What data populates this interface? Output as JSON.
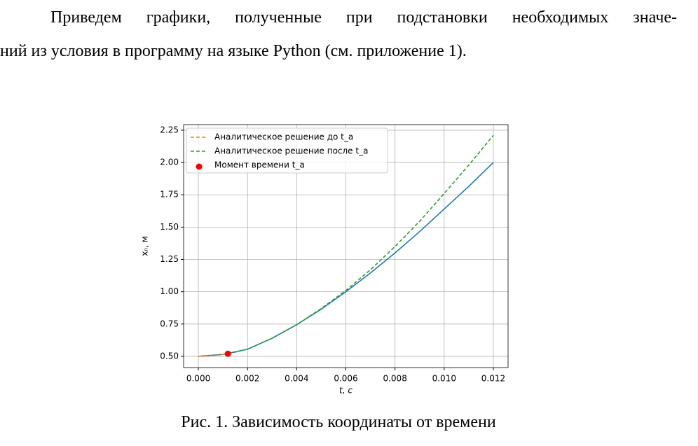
{
  "paragraph": {
    "lines": [
      "Приведем графики, полученные при подстановки необходимых значе-",
      "ний из условия в программу на языке Python (см. приложение 1)."
    ]
  },
  "chart_data": {
    "type": "line",
    "xlabel": "t, c",
    "ylabel": "xₙ, м",
    "xlim": [
      -0.0006,
      0.0126
    ],
    "ylim": [
      0.413,
      2.293
    ],
    "xticks": [
      {
        "value": 0,
        "label": "0.000"
      },
      {
        "value": 0.002,
        "label": "0.002"
      },
      {
        "value": 0.004,
        "label": "0.004"
      },
      {
        "value": 0.006,
        "label": "0.006"
      },
      {
        "value": 0.008,
        "label": "0.008"
      },
      {
        "value": 0.01,
        "label": "0.010"
      },
      {
        "value": 0.012,
        "label": "0.012"
      }
    ],
    "yticks": [
      {
        "value": 0.5,
        "label": "0.50"
      },
      0.75,
      {
        "value": 1,
        "label": "1.00"
      },
      1.25,
      {
        "value": 1.5,
        "label": "1.50"
      },
      1.75,
      {
        "value": 2,
        "label": "2.00"
      },
      2.25
    ],
    "grid": true,
    "legend": "upper-left",
    "series": [
      {
        "color": "#1f77b4",
        "style": "solid",
        "x": [
          0,
          0.001,
          0.002,
          0.003,
          0.004,
          0.005,
          0.006,
          0.007,
          0.008,
          0.009,
          0.01,
          0.011,
          0.012
        ],
        "values": [
          0.5,
          0.515,
          0.555,
          0.64,
          0.745,
          0.865,
          1.0,
          1.145,
          1.3,
          1.465,
          1.64,
          1.815,
          2.0
        ]
      },
      {
        "name": "Аналитическое решение до t_a",
        "color": "#ff7f0e",
        "style": "dashed",
        "x": [
          0,
          0.0006,
          0.0012
        ],
        "values": [
          0.5,
          0.505,
          0.52
        ]
      },
      {
        "name": "Аналитическое решение после t_a",
        "color": "#2ca02c",
        "style": "dashed",
        "x": [
          0.0012,
          0.002,
          0.003,
          0.004,
          0.005,
          0.006,
          0.007,
          0.008,
          0.009,
          0.01,
          0.011,
          0.012
        ],
        "values": [
          0.52,
          0.555,
          0.64,
          0.745,
          0.87,
          1.01,
          1.17,
          1.35,
          1.545,
          1.76,
          1.98,
          2.21
        ]
      },
      {
        "name": "Момент времени t_a",
        "color": "#ff0000",
        "style": "point",
        "x": [
          0.0012
        ],
        "values": [
          0.52
        ]
      }
    ]
  },
  "caption": "Рис. 1. Зависимость координаты от времени"
}
